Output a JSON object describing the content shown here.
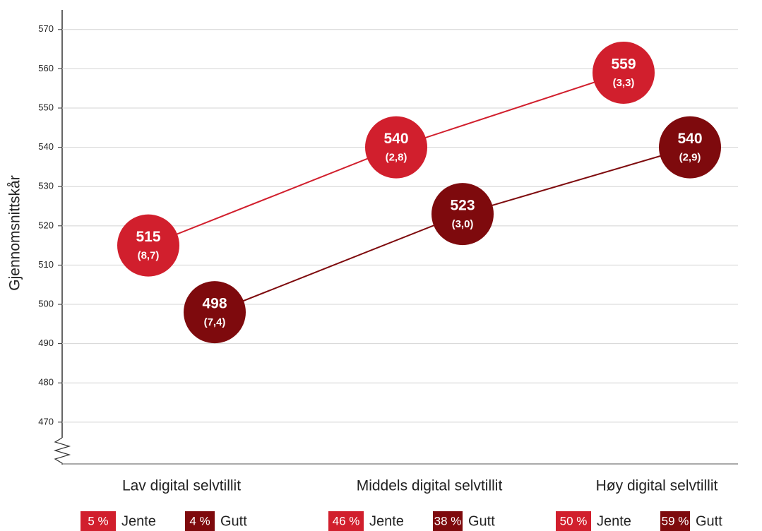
{
  "chart_data": {
    "type": "line",
    "y_label": "Gjennomsnittskår",
    "categories": [
      "Lav digital selvtillit",
      "Middels digital selvtillit",
      "Høy digital selvtillit"
    ],
    "series": [
      {
        "name": "Jente",
        "color": "#d11f2d",
        "values": [
          515,
          540,
          559
        ],
        "errors": [
          8.7,
          2.8,
          3.3
        ],
        "error_labels": [
          "(8,7)",
          "(2,8)",
          "(3,3)"
        ],
        "shares": [
          5,
          46,
          50
        ],
        "share_labels": [
          "5 %",
          "46 %",
          "50 %"
        ]
      },
      {
        "name": "Gutt",
        "color": "#7e0a0d",
        "values": [
          498,
          523,
          540
        ],
        "errors": [
          7.4,
          3.0,
          2.9
        ],
        "error_labels": [
          "(7,4)",
          "(3,0)",
          "(2,9)"
        ],
        "shares": [
          4,
          38,
          59
        ],
        "share_labels": [
          "4 %",
          "38 %",
          "59 %"
        ]
      }
    ],
    "ylim": [
      459,
      575
    ],
    "yticks": [
      470,
      480,
      490,
      500,
      510,
      520,
      530,
      540,
      550,
      560,
      570
    ],
    "grid": true
  }
}
